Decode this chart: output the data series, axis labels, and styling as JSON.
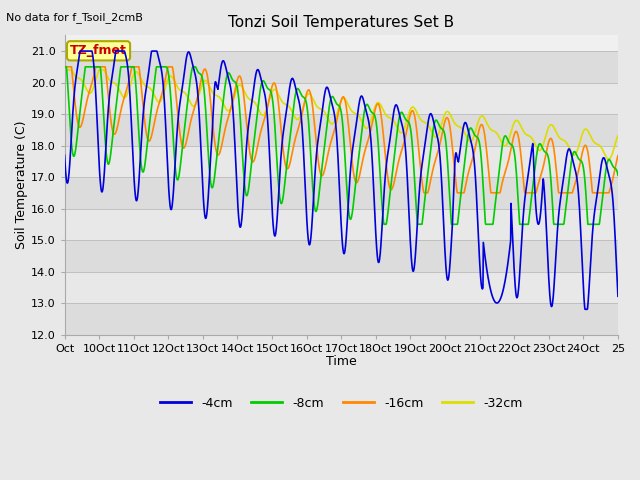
{
  "title": "Tonzi Soil Temperatures Set B",
  "xlabel": "Time",
  "ylabel": "Soil Temperature (C)",
  "top_left_note": "No data for f_Tsoil_2cmB",
  "legend_box_label": "TZ_fmet",
  "ylim": [
    12.0,
    21.5
  ],
  "yticks": [
    12.0,
    13.0,
    14.0,
    15.0,
    16.0,
    17.0,
    18.0,
    19.0,
    20.0,
    21.0
  ],
  "xtick_labels": [
    "Oct",
    "10Oct",
    "11Oct",
    "12Oct",
    "13Oct",
    "14Oct",
    "15Oct",
    "16Oct",
    "17Oct",
    "18Oct",
    "19Oct",
    "20Oct",
    "21Oct",
    "22Oct",
    "23Oct",
    "24Oct",
    "25"
  ],
  "colors": {
    "4cm": "#0000dd",
    "8cm": "#00cc00",
    "16cm": "#ff8800",
    "32cm": "#dddd00"
  },
  "legend_labels": [
    "-4cm",
    "-8cm",
    "-16cm",
    "-32cm"
  ],
  "bg_stripe_dark": "#dcdcdc",
  "bg_stripe_light": "#e8e8e8",
  "fig_bg": "#e8e8e8",
  "grid_color": "#c8c8c8"
}
